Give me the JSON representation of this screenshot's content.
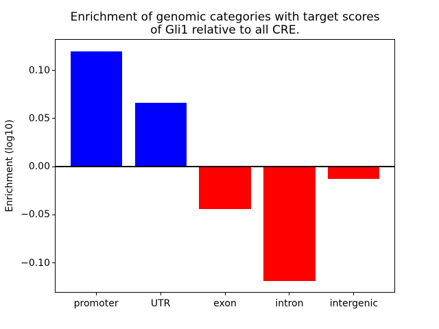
{
  "chart_data": {
    "type": "bar",
    "title": "Enrichment of genomic categories with target scores\nof Gli1 relative to all CRE.",
    "xlabel": "",
    "ylabel": "Enrichment (log10)",
    "categories": [
      "promoter",
      "UTR",
      "exon",
      "intron",
      "intergenic"
    ],
    "values": [
      0.12,
      0.066,
      -0.044,
      -0.119,
      -0.013
    ],
    "ylim": [
      -0.131,
      0.1325
    ],
    "yticks": [
      {
        "value": 0.1,
        "label": "0.10"
      },
      {
        "value": 0.05,
        "label": "0.05"
      },
      {
        "value": 0.0,
        "label": "0.00"
      },
      {
        "value": -0.05,
        "label": "−0.05"
      },
      {
        "value": -0.1,
        "label": "−0.10"
      }
    ],
    "positive_color": "#0000ff",
    "negative_color": "#ff0000",
    "axis_color": "#000000",
    "zero_line": true,
    "grid": false,
    "legend": false
  }
}
